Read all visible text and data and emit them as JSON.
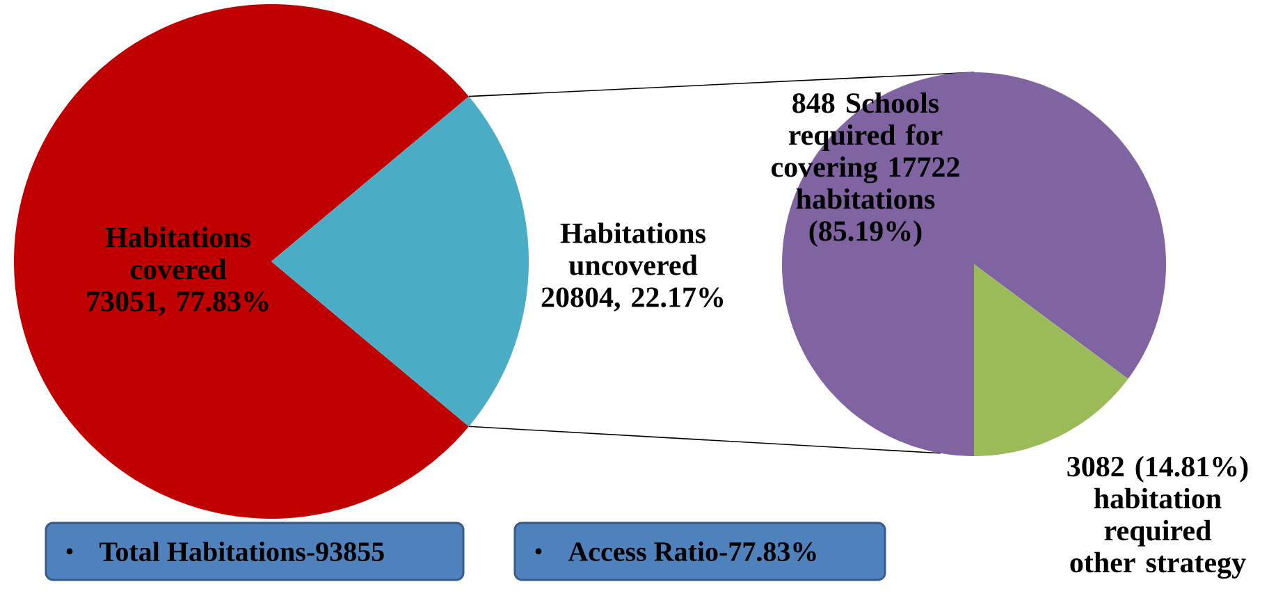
{
  "chart_data": [
    {
      "type": "pie",
      "categories": [
        "Habitations covered",
        "Habitations uncovered"
      ],
      "values": [
        73051,
        20804
      ],
      "value_labels": [
        "73051, 77.83%",
        "20804, 22.17%"
      ],
      "colors": [
        "#c00000",
        "#4bacc6"
      ],
      "annotations": [
        "Total Habitations-93855",
        "Access Ratio-77.83%"
      ]
    },
    {
      "type": "pie",
      "categories": [
        "848 Schools required for covering 17722 habitations (85.19%)",
        "3082 (14.81%) habitation required other strategy"
      ],
      "values": [
        17722,
        3082
      ],
      "colors": [
        "#8064a2",
        "#9bbb59"
      ]
    }
  ]
}
